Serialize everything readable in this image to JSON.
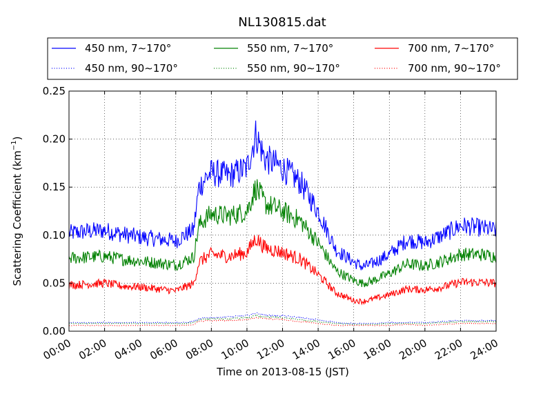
{
  "chart_data": {
    "type": "line",
    "title": "NL130815.dat",
    "xlabel": "Time on 2013-08-15 (JST)",
    "ylabel_main": "Scattering Coefficient (km",
    "ylabel_sup": "−1",
    "ylabel_close": ")",
    "xlim": [
      0,
      24
    ],
    "ylim": [
      0,
      0.25
    ],
    "x_ticks": [
      "00:00",
      "02:00",
      "04:00",
      "06:00",
      "08:00",
      "10:00",
      "12:00",
      "14:00",
      "16:00",
      "18:00",
      "20:00",
      "22:00",
      "24:00"
    ],
    "y_ticks": [
      "0.00",
      "0.05",
      "0.10",
      "0.15",
      "0.20",
      "0.25"
    ],
    "grid": true,
    "legend_position": "top",
    "x_hours": [
      0,
      1,
      2,
      3,
      4,
      5,
      6,
      6.5,
      7,
      7.3,
      7.7,
      8,
      9,
      10,
      10.5,
      11,
      12,
      13,
      14,
      15,
      16,
      16.5,
      17,
      18,
      19,
      20,
      21,
      22,
      23,
      24
    ],
    "series": [
      {
        "name": "450 nm, 7∼170°",
        "color": "#0000ff",
        "style": "solid",
        "values": [
          0.102,
          0.104,
          0.105,
          0.101,
          0.098,
          0.096,
          0.094,
          0.1,
          0.105,
          0.15,
          0.16,
          0.165,
          0.162,
          0.17,
          0.205,
          0.18,
          0.17,
          0.155,
          0.125,
          0.085,
          0.072,
          0.067,
          0.07,
          0.08,
          0.095,
          0.092,
          0.1,
          0.11,
          0.108,
          0.105
        ]
      },
      {
        "name": "550 nm, 7∼170°",
        "color": "#008000",
        "style": "solid",
        "values": [
          0.076,
          0.077,
          0.078,
          0.075,
          0.073,
          0.071,
          0.069,
          0.073,
          0.077,
          0.11,
          0.118,
          0.122,
          0.12,
          0.125,
          0.15,
          0.133,
          0.125,
          0.115,
          0.092,
          0.063,
          0.053,
          0.05,
          0.052,
          0.06,
          0.07,
          0.068,
          0.073,
          0.08,
          0.08,
          0.078
        ]
      },
      {
        "name": "700 nm, 7∼170°",
        "color": "#ff0000",
        "style": "solid",
        "values": [
          0.048,
          0.049,
          0.05,
          0.047,
          0.046,
          0.044,
          0.042,
          0.046,
          0.049,
          0.072,
          0.077,
          0.08,
          0.078,
          0.082,
          0.097,
          0.087,
          0.082,
          0.075,
          0.059,
          0.04,
          0.032,
          0.031,
          0.033,
          0.038,
          0.044,
          0.043,
          0.046,
          0.051,
          0.051,
          0.05
        ]
      },
      {
        "name": "450 nm, 90∼170°",
        "color": "#0000ff",
        "style": "dotted",
        "values": [
          0.009,
          0.009,
          0.009,
          0.009,
          0.009,
          0.009,
          0.009,
          0.009,
          0.01,
          0.013,
          0.014,
          0.014,
          0.015,
          0.016,
          0.019,
          0.017,
          0.016,
          0.014,
          0.012,
          0.009,
          0.008,
          0.008,
          0.008,
          0.009,
          0.009,
          0.009,
          0.01,
          0.011,
          0.011,
          0.011
        ]
      },
      {
        "name": "550 nm, 90∼170°",
        "color": "#008000",
        "style": "dotted",
        "values": [
          0.008,
          0.008,
          0.008,
          0.008,
          0.008,
          0.008,
          0.008,
          0.008,
          0.009,
          0.012,
          0.013,
          0.013,
          0.013,
          0.014,
          0.016,
          0.015,
          0.014,
          0.012,
          0.01,
          0.008,
          0.007,
          0.007,
          0.007,
          0.008,
          0.008,
          0.008,
          0.009,
          0.01,
          0.01,
          0.01
        ]
      },
      {
        "name": "700 nm, 90∼170°",
        "color": "#ff0000",
        "style": "dotted",
        "values": [
          0.006,
          0.006,
          0.006,
          0.006,
          0.006,
          0.006,
          0.006,
          0.006,
          0.007,
          0.01,
          0.011,
          0.011,
          0.011,
          0.012,
          0.014,
          0.013,
          0.012,
          0.01,
          0.008,
          0.006,
          0.006,
          0.006,
          0.006,
          0.006,
          0.007,
          0.006,
          0.007,
          0.008,
          0.008,
          0.008
        ]
      }
    ]
  }
}
